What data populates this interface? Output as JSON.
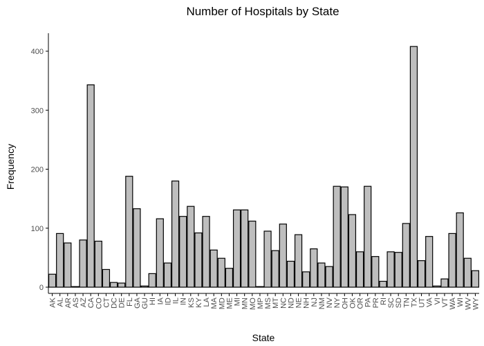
{
  "chart_data": {
    "type": "bar",
    "title": "Number of Hospitals by State",
    "xlabel": "State",
    "ylabel": "Frequency",
    "ylim": [
      0,
      420
    ],
    "yticks": [
      0,
      100,
      200,
      300,
      400
    ],
    "grid": false,
    "legend": "none",
    "categories": [
      "AK",
      "AL",
      "AR",
      "AS",
      "AZ",
      "CA",
      "CO",
      "CT",
      "DC",
      "DE",
      "FL",
      "GA",
      "GU",
      "HI",
      "IA",
      "ID",
      "IL",
      "IN",
      "KS",
      "KY",
      "LA",
      "MA",
      "MD",
      "ME",
      "MI",
      "MN",
      "MO",
      "MP",
      "MS",
      "MT",
      "NC",
      "ND",
      "NE",
      "NH",
      "NJ",
      "NM",
      "NV",
      "NY",
      "OH",
      "OK",
      "OR",
      "PA",
      "PR",
      "RI",
      "SC",
      "SD",
      "TN",
      "TX",
      "UT",
      "VA",
      "VI",
      "VT",
      "WA",
      "WI",
      "WV",
      "WY"
    ],
    "values": [
      22,
      91,
      75,
      1,
      80,
      343,
      78,
      30,
      8,
      7,
      188,
      133,
      2,
      23,
      116,
      41,
      180,
      120,
      137,
      92,
      120,
      63,
      49,
      32,
      131,
      131,
      112,
      1,
      95,
      62,
      107,
      44,
      89,
      26,
      65,
      41,
      35,
      171,
      170,
      123,
      60,
      171,
      52,
      10,
      60,
      59,
      108,
      408,
      45,
      86,
      2,
      14,
      91,
      126,
      49,
      28
    ],
    "colors": {
      "bar_fill": "#bebebe",
      "bar_stroke": "#000000",
      "axis": "#000000",
      "tick_text": "#4d4d4d",
      "background": "#ffffff"
    }
  }
}
